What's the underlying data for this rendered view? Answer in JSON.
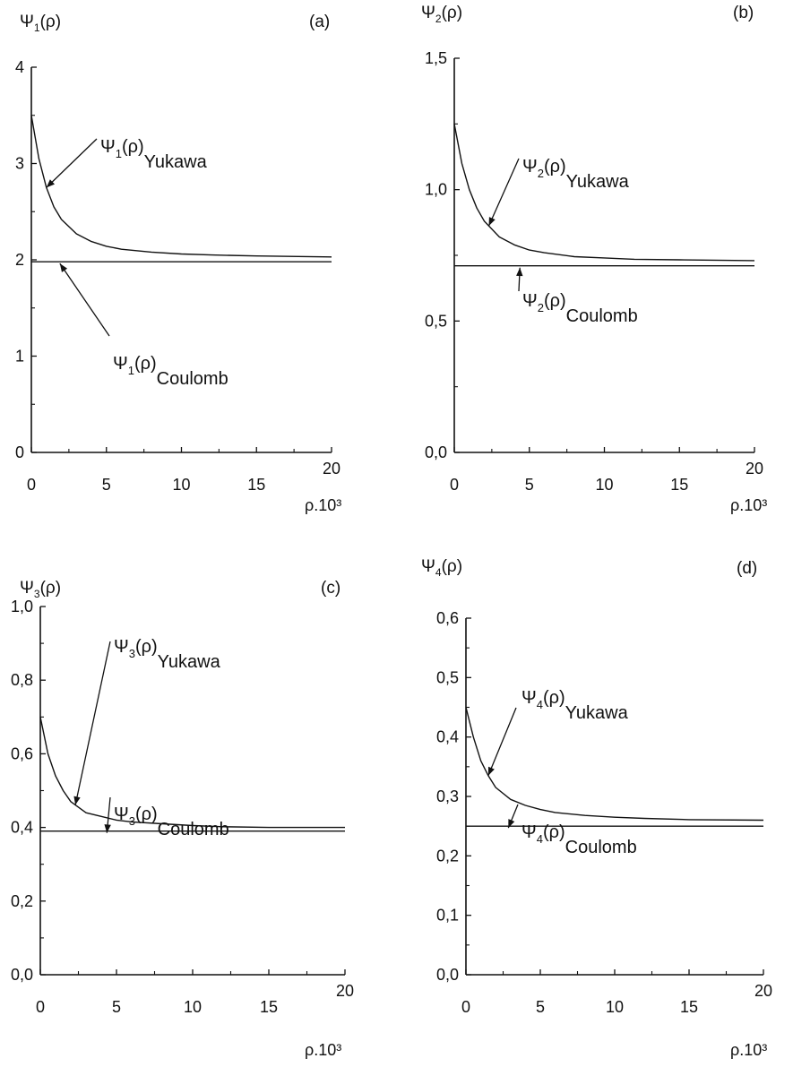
{
  "colors": {
    "ink": "#111111",
    "background": "#ffffff"
  },
  "chart_data": [
    {
      "type": "line",
      "panel_label": "(a)",
      "ylabel": "Ψ1(ρ)",
      "xlabel": "ρ.10³",
      "xlim": [
        0,
        20
      ],
      "ylim": [
        0,
        4
      ],
      "xticks": [
        "0",
        "5",
        "10",
        "15",
        "20"
      ],
      "yticks": [
        "0",
        "1",
        "2",
        "3",
        "4"
      ],
      "series": [
        {
          "name": "Ψ1(ρ) Yukawa",
          "x": [
            0,
            0.5,
            1,
            1.5,
            2,
            3,
            4,
            5,
            6,
            8,
            10,
            12,
            15,
            20
          ],
          "y": [
            3.5,
            3.05,
            2.75,
            2.55,
            2.42,
            2.27,
            2.19,
            2.14,
            2.11,
            2.08,
            2.06,
            2.05,
            2.04,
            2.03
          ]
        },
        {
          "name": "Ψ1(ρ) Coulomb",
          "x": [
            0,
            20
          ],
          "y": [
            1.98,
            1.98
          ]
        }
      ],
      "annotations": [
        {
          "psi": "Ψ",
          "sub": "1",
          "arg": "(ρ)",
          "tail": "Yukawa"
        },
        {
          "psi": "Ψ",
          "sub": "1",
          "arg": "(ρ)",
          "tail": "Coulomb"
        }
      ]
    },
    {
      "type": "line",
      "panel_label": "(b)",
      "ylabel": "Ψ2(ρ)",
      "xlabel": "ρ.10³",
      "xlim": [
        0,
        20
      ],
      "ylim": [
        0,
        1.5
      ],
      "xticks": [
        "0",
        "5",
        "10",
        "15",
        "20"
      ],
      "yticks": [
        "0,0",
        "0,5",
        "1,0",
        "1,5"
      ],
      "series": [
        {
          "name": "Ψ2(ρ) Yukawa",
          "x": [
            0,
            0.5,
            1,
            1.5,
            2,
            3,
            4,
            5,
            6,
            8,
            10,
            12,
            15,
            20
          ],
          "y": [
            1.25,
            1.1,
            1.0,
            0.93,
            0.88,
            0.82,
            0.79,
            0.77,
            0.76,
            0.745,
            0.74,
            0.735,
            0.733,
            0.73
          ]
        },
        {
          "name": "Ψ2(ρ) Coulomb",
          "x": [
            0,
            20
          ],
          "y": [
            0.71,
            0.71
          ]
        }
      ],
      "annotations": [
        {
          "psi": "Ψ",
          "sub": "2",
          "arg": "(ρ)",
          "tail": "Yukawa"
        },
        {
          "psi": "Ψ",
          "sub": "2",
          "arg": "(ρ)",
          "tail": "Coulomb"
        }
      ]
    },
    {
      "type": "line",
      "panel_label": "(c)",
      "ylabel": "Ψ3(ρ)",
      "xlabel": "ρ.10³",
      "xlim": [
        0,
        20
      ],
      "ylim": [
        0,
        1.0
      ],
      "xticks": [
        "0",
        "5",
        "10",
        "15",
        "20"
      ],
      "yticks": [
        "0,0",
        "0,2",
        "0,4",
        "0,6",
        "0,8",
        "1,0"
      ],
      "series": [
        {
          "name": "Ψ3(ρ) Yukawa",
          "x": [
            0,
            0.5,
            1,
            1.5,
            2,
            3,
            4,
            5,
            6,
            8,
            10,
            12,
            15,
            20
          ],
          "y": [
            0.7,
            0.6,
            0.54,
            0.5,
            0.47,
            0.44,
            0.43,
            0.42,
            0.415,
            0.41,
            0.405,
            0.402,
            0.4,
            0.4
          ]
        },
        {
          "name": "Ψ3(ρ) Coulomb",
          "x": [
            0,
            20
          ],
          "y": [
            0.39,
            0.39
          ]
        }
      ],
      "annotations": [
        {
          "psi": "Ψ",
          "sub": "3",
          "arg": "(ρ)",
          "tail": "Yukawa"
        },
        {
          "psi": "Ψ",
          "sub": "3",
          "arg": "(ρ)",
          "tail": "Coulomb"
        }
      ]
    },
    {
      "type": "line",
      "panel_label": "(d)",
      "ylabel": "Ψ4(ρ)",
      "xlabel": "ρ.10³",
      "xlim": [
        0,
        20
      ],
      "ylim": [
        0,
        0.6
      ],
      "xticks": [
        "0",
        "5",
        "10",
        "15",
        "20"
      ],
      "yticks": [
        "0,0",
        "0,1",
        "0,2",
        "0,3",
        "0,4",
        "0,5",
        "0,6"
      ],
      "series": [
        {
          "name": "Ψ4(ρ) Yukawa",
          "x": [
            0,
            0.5,
            1,
            1.5,
            2,
            3,
            4,
            5,
            6,
            8,
            10,
            12,
            15,
            20
          ],
          "y": [
            0.45,
            0.4,
            0.36,
            0.335,
            0.315,
            0.295,
            0.285,
            0.278,
            0.273,
            0.268,
            0.265,
            0.263,
            0.261,
            0.26
          ]
        },
        {
          "name": "Ψ4(ρ) Coulomb",
          "x": [
            0,
            20
          ],
          "y": [
            0.25,
            0.25
          ]
        }
      ],
      "annotations": [
        {
          "psi": "Ψ",
          "sub": "4",
          "arg": "(ρ)",
          "tail": "Yukawa"
        },
        {
          "psi": "Ψ",
          "sub": "4",
          "arg": "(ρ)",
          "tail": "Coulomb"
        }
      ]
    }
  ]
}
